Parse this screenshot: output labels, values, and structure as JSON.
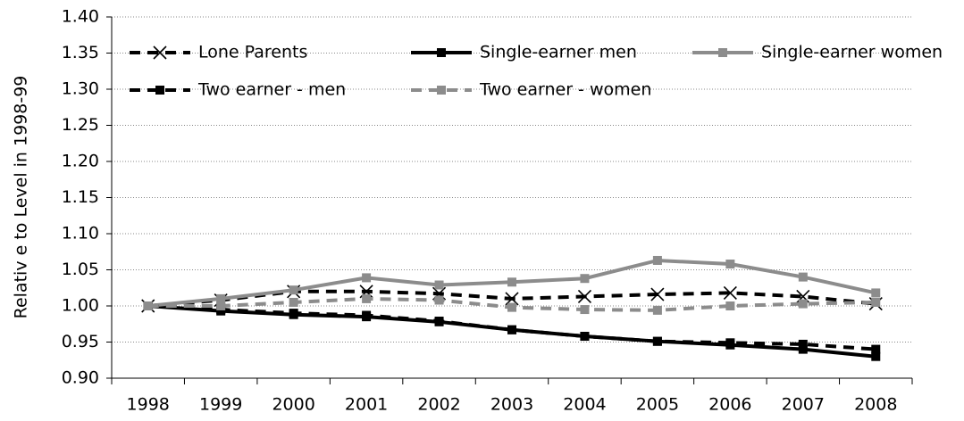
{
  "chart_data": {
    "type": "line",
    "y_label": "Relativ e to Level in 1998-99",
    "categories": [
      "1998",
      "1999",
      "2000",
      "2001",
      "2002",
      "2003",
      "2004",
      "2005",
      "2006",
      "2007",
      "2008"
    ],
    "ylim": [
      0.9,
      1.4
    ],
    "yticks": [
      {
        "value": 0.9,
        "label": "0.90"
      },
      0.95,
      {
        "value": 1,
        "label": "1.00"
      },
      1.05,
      {
        "value": 1.1,
        "label": "1.10"
      },
      1.15,
      {
        "value": 1.2,
        "label": "1.20"
      },
      1.25,
      {
        "value": 1.3,
        "label": "1.30"
      },
      1.35,
      {
        "value": 1.4,
        "label": "1.40"
      }
    ],
    "grid": true,
    "series": [
      {
        "name": "Lone Parents",
        "color": "#000000",
        "dash": true,
        "marker": "x",
        "values": [
          1.0,
          1.008,
          1.02,
          1.02,
          1.017,
          1.01,
          1.013,
          1.016,
          1.018,
          1.013,
          1.003
        ]
      },
      {
        "name": "Single-earner men",
        "color": "#000000",
        "dash": false,
        "marker": "square",
        "values": [
          1.0,
          0.993,
          0.988,
          0.985,
          0.978,
          0.967,
          0.958,
          0.951,
          0.946,
          0.94,
          0.93
        ]
      },
      {
        "name": "Single-earner women",
        "color": "#8c8c8c",
        "dash": false,
        "marker": "square",
        "values": [
          1.0,
          1.01,
          1.022,
          1.039,
          1.029,
          1.033,
          1.038,
          1.063,
          1.058,
          1.04,
          1.018
        ]
      },
      {
        "name": "Two earner - men",
        "color": "#000000",
        "dash": true,
        "marker": "square",
        "values": [
          1.0,
          0.995,
          0.99,
          0.987,
          0.979,
          0.967,
          0.958,
          0.951,
          0.949,
          0.947,
          0.94
        ]
      },
      {
        "name": "Two earner - women",
        "color": "#8c8c8c",
        "dash": true,
        "marker": "square",
        "values": [
          1.0,
          1.0,
          1.005,
          1.01,
          1.008,
          0.998,
          0.995,
          0.994,
          1.0,
          1.003,
          1.005
        ]
      }
    ]
  }
}
